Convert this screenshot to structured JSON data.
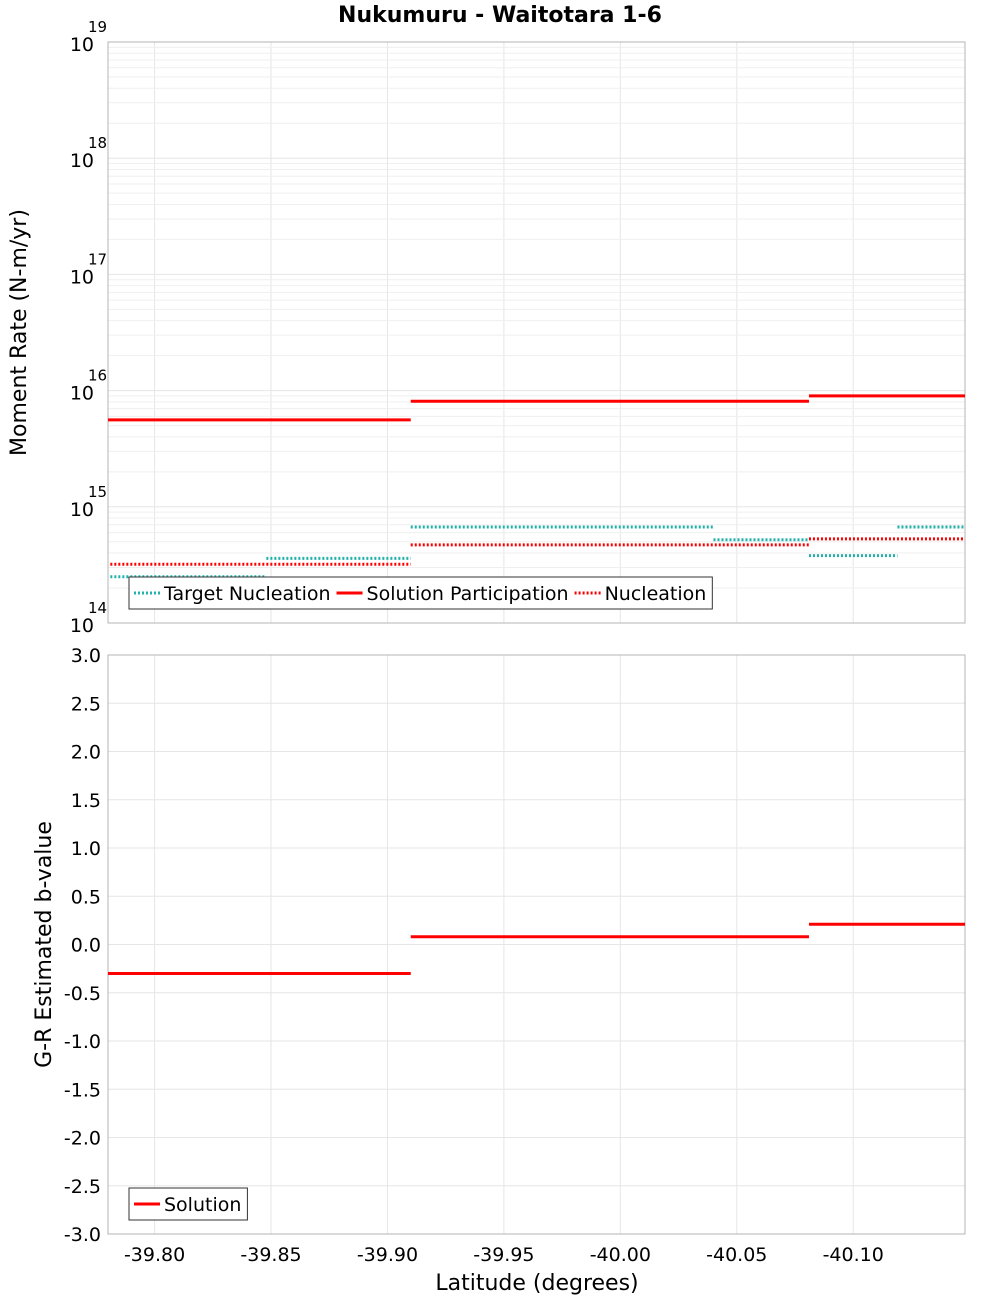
{
  "chart_data": {
    "type": "line",
    "title": "Nukumuru - Waitotara 1-6",
    "xlabel": "Latitude (degrees)",
    "xlim": [
      -39.78,
      -40.148
    ],
    "x_ticks": [
      "-39.80",
      "-39.85",
      "-39.90",
      "-39.95",
      "-40.00",
      "-40.05",
      "-40.10"
    ],
    "x_tick_values": [
      -39.8,
      -39.85,
      -39.9,
      -39.95,
      -40.0,
      -40.05,
      -40.1
    ],
    "panels": [
      {
        "name": "moment-rate",
        "ylabel": "Moment Rate (N-m/yr)",
        "yscale": "log",
        "ylim": [
          100000000000000.0,
          1e+19
        ],
        "y_ticks": [
          {
            "value": 100000000000000.0,
            "base": "10",
            "exp": "14"
          },
          {
            "value": 1000000000000000.0,
            "base": "10",
            "exp": "15"
          },
          {
            "value": 1e+16,
            "base": "10",
            "exp": "16"
          },
          {
            "value": 1e+17,
            "base": "10",
            "exp": "17"
          },
          {
            "value": 1e+18,
            "base": "10",
            "exp": "18"
          },
          {
            "value": 1e+19,
            "base": "10",
            "exp": "19"
          }
        ],
        "legend_position": "bottom-left",
        "series": [
          {
            "name": "Target Nucleation",
            "color": "#20b2aa",
            "style": "dotted",
            "segments": [
              {
                "x0": -39.781,
                "x1": -39.848,
                "y": 250000000000000.0
              },
              {
                "x0": -39.848,
                "x1": -39.91,
                "y": 360000000000000.0
              },
              {
                "x0": -39.91,
                "x1": -40.04,
                "y": 670000000000000.0
              },
              {
                "x0": -40.04,
                "x1": -40.081,
                "y": 520000000000000.0
              },
              {
                "x0": -40.081,
                "x1": -40.119,
                "y": 380000000000000.0
              },
              {
                "x0": -40.119,
                "x1": -40.148,
                "y": 670000000000000.0
              }
            ]
          },
          {
            "name": "Solution Participation",
            "color": "#ff0000",
            "style": "solid",
            "segments": [
              {
                "x0": -39.78,
                "x1": -39.91,
                "y": 5600000000000000.0
              },
              {
                "x0": -39.91,
                "x1": -40.081,
                "y": 8100000000000000.0
              },
              {
                "x0": -40.081,
                "x1": -40.148,
                "y": 9000000000000000.0
              }
            ]
          },
          {
            "name": "Nucleation",
            "color": "#ff0000",
            "style": "dotted",
            "segments": [
              {
                "x0": -39.781,
                "x1": -39.91,
                "y": 320000000000000.0
              },
              {
                "x0": -39.91,
                "x1": -40.081,
                "y": 470000000000000.0
              },
              {
                "x0": -40.081,
                "x1": -40.148,
                "y": 530000000000000.0
              }
            ]
          }
        ]
      },
      {
        "name": "b-value",
        "ylabel": "G-R Estimated b-value",
        "yscale": "linear",
        "ylim": [
          -3.0,
          3.0
        ],
        "y_ticks": [
          "-3.0",
          "-2.5",
          "-2.0",
          "-1.5",
          "-1.0",
          "-0.5",
          "0.0",
          "0.5",
          "1.0",
          "1.5",
          "2.0",
          "2.5",
          "3.0"
        ],
        "y_tick_values": [
          -3.0,
          -2.5,
          -2.0,
          -1.5,
          -1.0,
          -0.5,
          0.0,
          0.5,
          1.0,
          1.5,
          2.0,
          2.5,
          3.0
        ],
        "legend_position": "bottom-left",
        "series": [
          {
            "name": "Solution",
            "color": "#ff0000",
            "style": "solid",
            "segments": [
              {
                "x0": -39.78,
                "x1": -39.91,
                "y": -0.3
              },
              {
                "x0": -39.91,
                "x1": -40.081,
                "y": 0.08
              },
              {
                "x0": -40.081,
                "x1": -40.148,
                "y": 0.21
              }
            ]
          }
        ]
      }
    ]
  }
}
